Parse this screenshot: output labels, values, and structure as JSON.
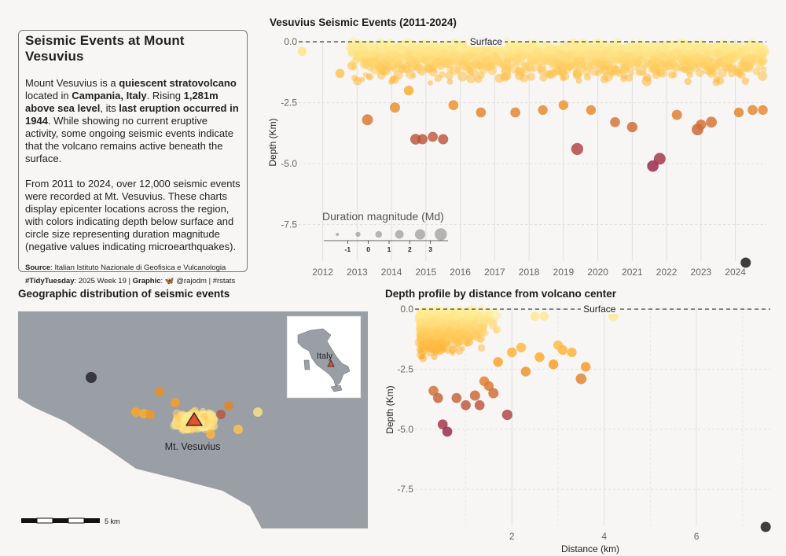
{
  "info": {
    "title": "Seismic Events at Mount Vesuvius",
    "p1": [
      {
        "t": "Mount Vesuvius is a ",
        "b": false
      },
      {
        "t": "quiescent stratovolcano",
        "b": true
      },
      {
        "t": " located in ",
        "b": false
      },
      {
        "t": "Campania, Italy",
        "b": true
      },
      {
        "t": ". Rising ",
        "b": false
      },
      {
        "t": "1,281m above sea level",
        "b": true
      },
      {
        "t": ", its ",
        "b": false
      },
      {
        "t": "last eruption occurred in 1944",
        "b": true
      },
      {
        "t": ". While showing no current eruptive activity, some ongoing seismic events indicate that the volcano remains active beneath the surface.",
        "b": false
      }
    ],
    "p2": "From 2011 to 2024, over 12,000 seismic events were recorded at Mt. Vesuvius. These charts display epicenter locations across the region, with colors indicating depth below surface and circle size representing duration magnitude (negative values indicating microearthquakes).",
    "src1": [
      {
        "t": "Source",
        "b": true
      },
      {
        "t": ": Italian Istituto Nazionale di Geofisica e Vulcanologia",
        "b": false
      }
    ],
    "src2": [
      {
        "t": "#TidyTuesday",
        "b": true
      },
      {
        "t": ": 2025 Week 19 | ",
        "b": false
      },
      {
        "t": "Graphic",
        "b": true
      },
      {
        "t": ": 🦋 @rajodm | #rstats",
        "b": false
      }
    ]
  },
  "colors": {
    "background": "#f7f6f4",
    "map_land": "#9a9fa6",
    "map_sea": "#f7f6f4",
    "grid": "#e2e0dd",
    "shallow": "#fff3a0",
    "mid": "#ffa41b",
    "deep": "#8f1d4a",
    "outlier": "#333333"
  },
  "chart_data": [
    {
      "id": "timeline",
      "type": "scatter",
      "title": "Vesuvius Seismic Events (2011-2024)",
      "xlabel": "",
      "ylabel": "Depth (Km)",
      "x_ticks": [
        "2012",
        "2013",
        "2014",
        "2015",
        "2016",
        "2017",
        "2018",
        "2019",
        "2020",
        "2021",
        "2022",
        "2023",
        "2024"
      ],
      "y_ticks": [
        "0.0",
        "-2.5",
        "-5.0",
        "-7.5"
      ],
      "xlim": [
        2011.3,
        2024.9
      ],
      "ylim": [
        -9.0,
        0.1
      ],
      "reference_line": {
        "y": 0,
        "label": "Surface"
      },
      "size_legend": {
        "title": "Duration magnitude (Md)",
        "ticks": [
          "-1",
          "0",
          "1",
          "2",
          "3"
        ],
        "sizes": [
          -1.5,
          -0.5,
          0.5,
          1.5,
          2.5,
          3.5
        ]
      },
      "points": [
        [
          2011.4,
          -0.4,
          0.5
        ],
        [
          2012.5,
          -1.3,
          0.6
        ],
        [
          2013.3,
          -3.2,
          1.3
        ],
        [
          2014.1,
          -2.7,
          1.0
        ],
        [
          2014.5,
          -2.0,
          0.8
        ],
        [
          2014.7,
          -4.0,
          1.2
        ],
        [
          2014.9,
          -4.0,
          1.0
        ],
        [
          2015.2,
          -3.9,
          0.9
        ],
        [
          2015.5,
          -4.0,
          1.0
        ],
        [
          2015.8,
          -2.6,
          0.9
        ],
        [
          2019.4,
          -4.4,
          1.7
        ],
        [
          2021.0,
          -3.5,
          1.1
        ],
        [
          2021.6,
          -5.1,
          1.5
        ],
        [
          2021.8,
          -4.8,
          1.6
        ],
        [
          2022.9,
          -3.6,
          1.6
        ],
        [
          2023.3,
          -3.3,
          1.3
        ],
        [
          2019.8,
          -2.8,
          0.8
        ],
        [
          2017.6,
          -2.9,
          0.9
        ],
        [
          2018.4,
          -2.8,
          0.8
        ],
        [
          2016.6,
          -2.9,
          0.9
        ],
        [
          2020.5,
          -3.3,
          0.9
        ],
        [
          2024.1,
          -2.9,
          0.8
        ],
        [
          2024.5,
          -2.8,
          0.9
        ],
        [
          2022.3,
          -3.0,
          1.0
        ],
        [
          2023.0,
          -3.4,
          1.0
        ],
        [
          2019.0,
          -2.6,
          0.8
        ],
        [
          2014.3,
          -0.3,
          0.5
        ],
        [
          2024.8,
          -2.8,
          0.8
        ]
      ],
      "outlier": [
        2024.3,
        -9.5,
        2.6
      ]
    },
    {
      "id": "map",
      "type": "scatter",
      "title": "Geographic distribution of seismic events",
      "label": "Mt. Vesuvius",
      "inset_label": "Italy",
      "scale_label": "5 km"
    },
    {
      "id": "distance",
      "type": "scatter",
      "title": "Depth profile by distance from volcano center",
      "xlabel": "Distance (km)",
      "ylabel": "Depth (Km)",
      "x_ticks": [
        "2",
        "4",
        "6"
      ],
      "y_ticks": [
        "0.0",
        "-2.5",
        "-5.0",
        "-7.5"
      ],
      "xlim": [
        -0.1,
        7.6
      ],
      "ylim": [
        -9.0,
        0.1
      ],
      "reference_line": {
        "y": 0,
        "label": "Surface"
      },
      "points": [
        [
          4.2,
          -0.3,
          0.8
        ],
        [
          2.7,
          -0.3,
          0.5
        ],
        [
          2.5,
          -0.3,
          0.6
        ],
        [
          3.5,
          -2.9,
          1.2
        ],
        [
          3.6,
          -2.4,
          0.8
        ],
        [
          2.3,
          -2.6,
          0.8
        ],
        [
          1.9,
          -4.4,
          1.1
        ],
        [
          0.6,
          -5.1,
          0.9
        ],
        [
          0.5,
          -4.8,
          0.9
        ],
        [
          1.3,
          -4.0,
          0.9
        ],
        [
          1.2,
          -3.6,
          1.0
        ],
        [
          0.3,
          -3.4,
          0.9
        ],
        [
          2.6,
          -2.0,
          0.8
        ],
        [
          3.1,
          -1.7,
          0.8
        ],
        [
          1.5,
          -3.2,
          0.8
        ],
        [
          0.8,
          -3.7,
          0.9
        ],
        [
          1.0,
          -4.0,
          0.9
        ],
        [
          2.0,
          -1.8,
          0.8
        ],
        [
          2.9,
          -2.3,
          0.8
        ],
        [
          0.4,
          -3.7,
          0.9
        ],
        [
          1.7,
          -2.2,
          0.8
        ],
        [
          3.3,
          -1.8,
          0.7
        ],
        [
          1.6,
          -3.5,
          1.0
        ],
        [
          3.0,
          -1.5,
          0.7
        ],
        [
          1.4,
          -3.0,
          0.8
        ],
        [
          2.2,
          -1.6,
          0.8
        ]
      ],
      "outlier": [
        7.5,
        -9.3,
        2.6
      ]
    }
  ]
}
